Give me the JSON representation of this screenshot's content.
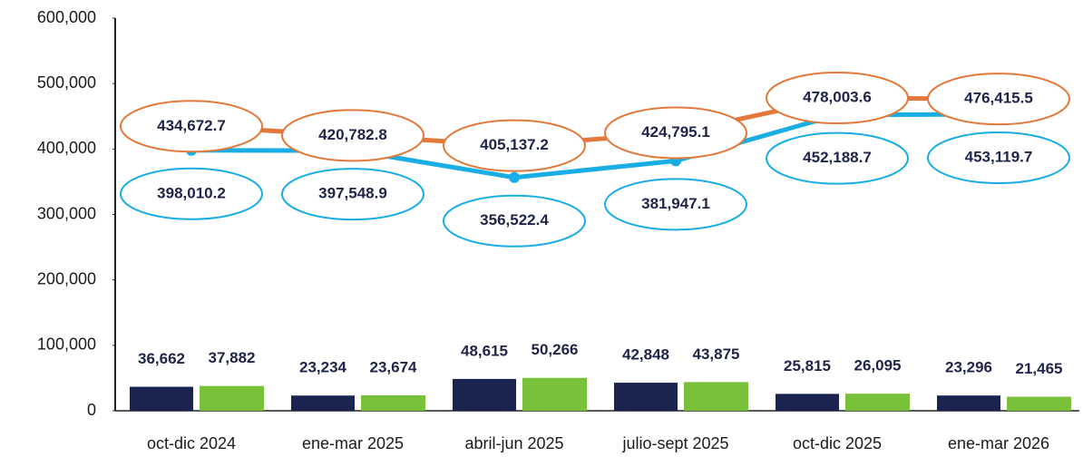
{
  "chart_data": {
    "type": "combo",
    "categories": [
      "oct-dic 2024",
      "ene-mar 2025",
      "abril-jun 2025",
      "julio-sept 2025",
      "oct-dic 2025",
      "ene-mar 2026"
    ],
    "series": [
      {
        "type": "bar",
        "color": "#1b2450",
        "values": [
          36662,
          23234,
          48615,
          42848,
          25815,
          23296
        ],
        "value_labels": [
          "36,662",
          "23,234",
          "48,615",
          "42,848",
          "25,815",
          "23,296"
        ]
      },
      {
        "type": "bar",
        "color": "#7ac13a",
        "values": [
          37882,
          23674,
          50266,
          43875,
          26095,
          21465
        ],
        "value_labels": [
          "37,882",
          "23,674",
          "50,266",
          "43,875",
          "26,095",
          "21,465"
        ]
      },
      {
        "type": "line",
        "color": "#19ade6",
        "values": [
          398010.2,
          397548.9,
          356522.4,
          381947.1,
          452188.7,
          453119.7
        ],
        "value_labels": [
          "398,010.2",
          "397,548.9",
          "356,522.4",
          "381,947.1",
          "452,188.7",
          "453,119.7"
        ]
      },
      {
        "type": "line",
        "color": "#e2783a",
        "values": [
          434672.7,
          420782.8,
          405137.2,
          424795.1,
          478003.6,
          476415.5
        ],
        "value_labels": [
          "434,672.7",
          "420,782.8",
          "405,137.2",
          "424,795.1",
          "478,003.6",
          "476,415.5"
        ]
      }
    ],
    "ylim": [
      0,
      600000
    ],
    "yticks": [
      0,
      {
        "value": 100000,
        "label": "100,000"
      },
      {
        "value": 200000,
        "label": "200,000"
      },
      {
        "value": 300000,
        "label": "300,000"
      },
      {
        "value": 400000,
        "label": "400,000"
      },
      {
        "value": 500000,
        "label": "500,000"
      },
      {
        "value": 600000,
        "label": "600,000"
      }
    ]
  }
}
